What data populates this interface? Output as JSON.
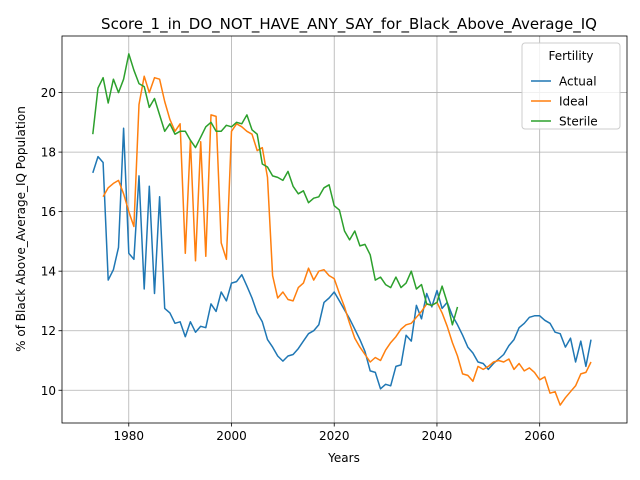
{
  "chart_data": {
    "type": "line",
    "title": "Score_1_in_DO_NOT_HAVE_ANY_SAY_for_Black_Above_Average_IQ",
    "xlabel": "Years",
    "ylabel": "% of Black Above_Average_IQ Population",
    "xlim": [
      1967,
      2077
    ],
    "ylim": [
      8.9,
      21.9
    ],
    "xticks": [
      1980,
      2000,
      2020,
      2040,
      2060
    ],
    "yticks": [
      10,
      12,
      14,
      16,
      18,
      20
    ],
    "grid": true,
    "legend": {
      "title": "Fertility",
      "placement": "top-right"
    },
    "series": [
      {
        "name": "Actual",
        "color": "#1f77b4",
        "points": [
          [
            1973,
            17.3
          ],
          [
            1974,
            17.85
          ],
          [
            1975,
            17.65
          ],
          [
            1976,
            13.7
          ],
          [
            1977,
            14.05
          ],
          [
            1978,
            14.8
          ],
          [
            1979,
            18.8
          ],
          [
            1980,
            14.6
          ],
          [
            1981,
            14.4
          ],
          [
            1982,
            17.2
          ],
          [
            1983,
            13.4
          ],
          [
            1984,
            16.85
          ],
          [
            1985,
            13.25
          ],
          [
            1986,
            16.5
          ],
          [
            1987,
            12.75
          ],
          [
            1988,
            12.6
          ],
          [
            1989,
            12.25
          ],
          [
            1990,
            12.3
          ],
          [
            1991,
            11.8
          ],
          [
            1992,
            12.3
          ],
          [
            1993,
            11.95
          ],
          [
            1994,
            12.15
          ],
          [
            1995,
            12.1
          ],
          [
            1996,
            12.9
          ],
          [
            1997,
            12.65
          ],
          [
            1998,
            13.3
          ],
          [
            1999,
            13.0
          ],
          [
            2000,
            13.6
          ],
          [
            2001,
            13.65
          ],
          [
            2002,
            13.88
          ],
          [
            2003,
            13.5
          ],
          [
            2004,
            13.1
          ],
          [
            2005,
            12.6
          ],
          [
            2006,
            12.3
          ],
          [
            2007,
            11.7
          ],
          [
            2008,
            11.45
          ],
          [
            2009,
            11.15
          ],
          [
            2010,
            10.98
          ],
          [
            2011,
            11.15
          ],
          [
            2012,
            11.2
          ],
          [
            2013,
            11.4
          ],
          [
            2014,
            11.65
          ],
          [
            2015,
            11.9
          ],
          [
            2016,
            12.0
          ],
          [
            2017,
            12.2
          ],
          [
            2018,
            12.95
          ],
          [
            2019,
            13.1
          ],
          [
            2020,
            13.3
          ],
          [
            2021,
            13.0
          ],
          [
            2022,
            12.7
          ],
          [
            2023,
            12.4
          ],
          [
            2024,
            12.05
          ],
          [
            2025,
            11.7
          ],
          [
            2026,
            11.3
          ],
          [
            2027,
            10.65
          ],
          [
            2028,
            10.6
          ],
          [
            2029,
            10.05
          ],
          [
            2030,
            10.2
          ],
          [
            2031,
            10.15
          ],
          [
            2032,
            10.8
          ],
          [
            2033,
            10.85
          ],
          [
            2034,
            11.85
          ],
          [
            2035,
            11.65
          ],
          [
            2036,
            12.85
          ],
          [
            2037,
            12.4
          ],
          [
            2038,
            13.25
          ],
          [
            2039,
            12.8
          ],
          [
            2040,
            13.35
          ],
          [
            2041,
            12.75
          ],
          [
            2042,
            12.95
          ],
          [
            2043,
            12.5
          ],
          [
            2044,
            12.2
          ],
          [
            2045,
            11.85
          ],
          [
            2046,
            11.45
          ],
          [
            2047,
            11.25
          ],
          [
            2048,
            10.95
          ],
          [
            2049,
            10.9
          ],
          [
            2050,
            10.7
          ],
          [
            2051,
            10.9
          ],
          [
            2052,
            11.05
          ],
          [
            2053,
            11.2
          ],
          [
            2054,
            11.5
          ],
          [
            2055,
            11.7
          ],
          [
            2056,
            12.1
          ],
          [
            2057,
            12.25
          ],
          [
            2058,
            12.45
          ],
          [
            2059,
            12.5
          ],
          [
            2060,
            12.5
          ],
          [
            2061,
            12.35
          ],
          [
            2062,
            12.25
          ],
          [
            2063,
            11.95
          ],
          [
            2064,
            11.9
          ],
          [
            2065,
            11.45
          ],
          [
            2066,
            11.75
          ],
          [
            2067,
            10.95
          ],
          [
            2068,
            11.65
          ],
          [
            2069,
            10.8
          ],
          [
            2070,
            11.7
          ]
        ]
      },
      {
        "name": "Ideal",
        "color": "#ff7f0e",
        "points": [
          [
            1975,
            16.5
          ],
          [
            1976,
            16.8
          ],
          [
            1977,
            16.95
          ],
          [
            1978,
            17.05
          ],
          [
            1979,
            16.6
          ],
          [
            1980,
            16.0
          ],
          [
            1981,
            15.5
          ],
          [
            1982,
            19.6
          ],
          [
            1983,
            20.55
          ],
          [
            1984,
            20.0
          ],
          [
            1985,
            20.5
          ],
          [
            1986,
            20.45
          ],
          [
            1987,
            19.7
          ],
          [
            1988,
            19.1
          ],
          [
            1989,
            18.7
          ],
          [
            1990,
            18.95
          ],
          [
            1991,
            14.6
          ],
          [
            1992,
            18.4
          ],
          [
            1993,
            14.35
          ],
          [
            1994,
            18.35
          ],
          [
            1995,
            14.5
          ],
          [
            1996,
            19.25
          ],
          [
            1997,
            19.2
          ],
          [
            1998,
            14.95
          ],
          [
            1999,
            14.4
          ],
          [
            2000,
            18.7
          ],
          [
            2001,
            18.95
          ],
          [
            2002,
            18.85
          ],
          [
            2003,
            18.7
          ],
          [
            2004,
            18.6
          ],
          [
            2005,
            18.05
          ],
          [
            2006,
            18.15
          ],
          [
            2007,
            17.15
          ],
          [
            2008,
            13.85
          ],
          [
            2009,
            13.1
          ],
          [
            2010,
            13.3
          ],
          [
            2011,
            13.05
          ],
          [
            2012,
            13.0
          ],
          [
            2013,
            13.45
          ],
          [
            2014,
            13.6
          ],
          [
            2015,
            14.1
          ],
          [
            2016,
            13.7
          ],
          [
            2017,
            14.0
          ],
          [
            2018,
            14.05
          ],
          [
            2019,
            13.85
          ],
          [
            2020,
            13.75
          ],
          [
            2021,
            13.25
          ],
          [
            2022,
            12.8
          ],
          [
            2023,
            12.25
          ],
          [
            2024,
            11.75
          ],
          [
            2025,
            11.45
          ],
          [
            2026,
            11.2
          ],
          [
            2027,
            10.95
          ],
          [
            2028,
            11.1
          ],
          [
            2029,
            11.0
          ],
          [
            2030,
            11.35
          ],
          [
            2031,
            11.6
          ],
          [
            2032,
            11.8
          ],
          [
            2033,
            12.05
          ],
          [
            2034,
            12.2
          ],
          [
            2035,
            12.25
          ],
          [
            2036,
            12.45
          ],
          [
            2037,
            12.65
          ],
          [
            2038,
            12.9
          ],
          [
            2039,
            12.85
          ],
          [
            2040,
            12.95
          ],
          [
            2041,
            12.6
          ],
          [
            2042,
            12.15
          ],
          [
            2043,
            11.6
          ],
          [
            2044,
            11.15
          ],
          [
            2045,
            10.55
          ],
          [
            2046,
            10.5
          ],
          [
            2047,
            10.3
          ],
          [
            2048,
            10.8
          ],
          [
            2049,
            10.7
          ],
          [
            2050,
            10.8
          ],
          [
            2051,
            10.95
          ],
          [
            2052,
            11.0
          ],
          [
            2053,
            10.95
          ],
          [
            2054,
            11.05
          ],
          [
            2055,
            10.7
          ],
          [
            2056,
            10.9
          ],
          [
            2057,
            10.65
          ],
          [
            2058,
            10.75
          ],
          [
            2059,
            10.6
          ],
          [
            2060,
            10.35
          ],
          [
            2061,
            10.45
          ],
          [
            2062,
            9.9
          ],
          [
            2063,
            9.95
          ],
          [
            2064,
            9.5
          ],
          [
            2065,
            9.75
          ],
          [
            2066,
            9.95
          ],
          [
            2067,
            10.15
          ],
          [
            2068,
            10.55
          ],
          [
            2069,
            10.6
          ],
          [
            2070,
            10.95
          ]
        ]
      },
      {
        "name": "Sterile",
        "color": "#2ca02c",
        "points": [
          [
            1973,
            18.6
          ],
          [
            1974,
            20.15
          ],
          [
            1975,
            20.5
          ],
          [
            1976,
            19.65
          ],
          [
            1977,
            20.45
          ],
          [
            1978,
            20.0
          ],
          [
            1979,
            20.45
          ],
          [
            1980,
            21.3
          ],
          [
            1981,
            20.75
          ],
          [
            1982,
            20.3
          ],
          [
            1983,
            20.2
          ],
          [
            1984,
            19.5
          ],
          [
            1985,
            19.8
          ],
          [
            1986,
            19.25
          ],
          [
            1987,
            18.7
          ],
          [
            1988,
            18.95
          ],
          [
            1989,
            18.6
          ],
          [
            1990,
            18.7
          ],
          [
            1991,
            18.7
          ],
          [
            1992,
            18.4
          ],
          [
            1993,
            18.15
          ],
          [
            1994,
            18.5
          ],
          [
            1995,
            18.85
          ],
          [
            1996,
            19.0
          ],
          [
            1997,
            18.7
          ],
          [
            1998,
            18.7
          ],
          [
            1999,
            18.9
          ],
          [
            2000,
            18.85
          ],
          [
            2001,
            19.0
          ],
          [
            2002,
            18.95
          ],
          [
            2003,
            19.25
          ],
          [
            2004,
            18.75
          ],
          [
            2005,
            18.6
          ],
          [
            2006,
            17.6
          ],
          [
            2007,
            17.5
          ],
          [
            2008,
            17.2
          ],
          [
            2009,
            17.15
          ],
          [
            2010,
            17.05
          ],
          [
            2011,
            17.35
          ],
          [
            2012,
            16.85
          ],
          [
            2013,
            16.6
          ],
          [
            2014,
            16.7
          ],
          [
            2015,
            16.3
          ],
          [
            2016,
            16.45
          ],
          [
            2017,
            16.5
          ],
          [
            2018,
            16.8
          ],
          [
            2019,
            16.9
          ],
          [
            2020,
            16.2
          ],
          [
            2021,
            16.05
          ],
          [
            2022,
            15.35
          ],
          [
            2023,
            15.05
          ],
          [
            2024,
            15.35
          ],
          [
            2025,
            14.85
          ],
          [
            2026,
            14.9
          ],
          [
            2027,
            14.55
          ],
          [
            2028,
            13.7
          ],
          [
            2029,
            13.8
          ],
          [
            2030,
            13.55
          ],
          [
            2031,
            13.45
          ],
          [
            2032,
            13.8
          ],
          [
            2033,
            13.45
          ],
          [
            2034,
            13.6
          ],
          [
            2035,
            14.0
          ],
          [
            2036,
            13.4
          ],
          [
            2037,
            13.55
          ],
          [
            2038,
            12.9
          ],
          [
            2039,
            12.85
          ],
          [
            2040,
            12.95
          ],
          [
            2041,
            13.5
          ],
          [
            2042,
            12.95
          ],
          [
            2043,
            12.2
          ],
          [
            2044,
            12.8
          ]
        ]
      }
    ]
  }
}
